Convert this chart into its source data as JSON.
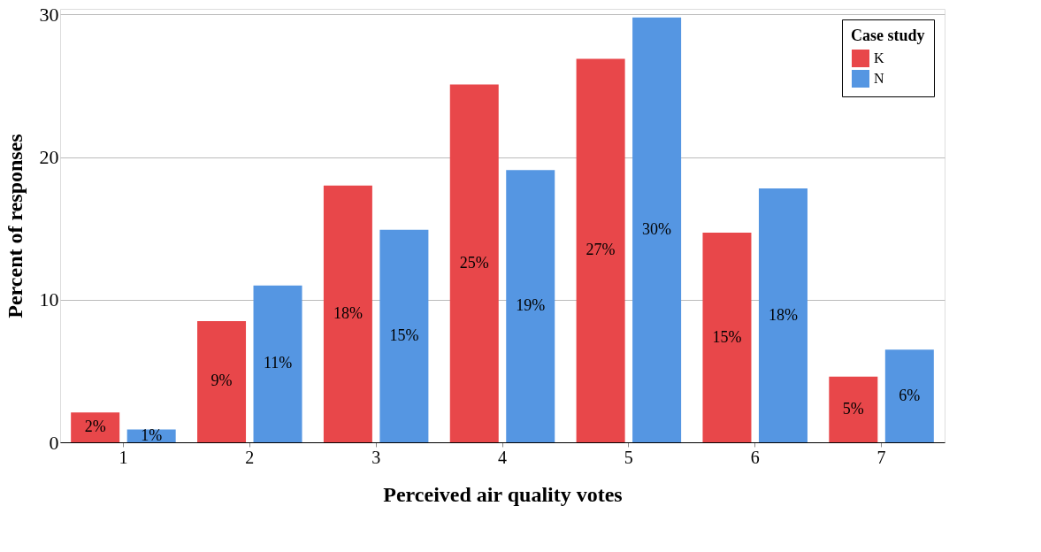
{
  "chart_data": {
    "type": "bar",
    "xlabel": "Perceived air quality votes",
    "ylabel": "Percent of responses",
    "legend_title": "Case study",
    "categories": [
      "1",
      "2",
      "3",
      "4",
      "5",
      "6",
      "7"
    ],
    "series": [
      {
        "name": "K",
        "color": "#e8474a",
        "values": [
          2.1,
          8.5,
          18.0,
          25.1,
          26.9,
          14.7,
          4.6
        ],
        "value_labels": [
          "2%",
          "9%",
          "18%",
          "25%",
          "27%",
          "15%",
          "5%"
        ]
      },
      {
        "name": "N",
        "color": "#5596e2",
        "values": [
          0.9,
          11.0,
          14.9,
          19.1,
          29.8,
          17.8,
          6.5
        ],
        "value_labels": [
          "1%",
          "11%",
          "15%",
          "19%",
          "30%",
          "18%",
          "6%"
        ]
      }
    ],
    "ylim": [
      0,
      30.4
    ],
    "yticks": [
      0,
      10,
      20,
      30
    ],
    "grid": "y",
    "legend": "top right"
  }
}
